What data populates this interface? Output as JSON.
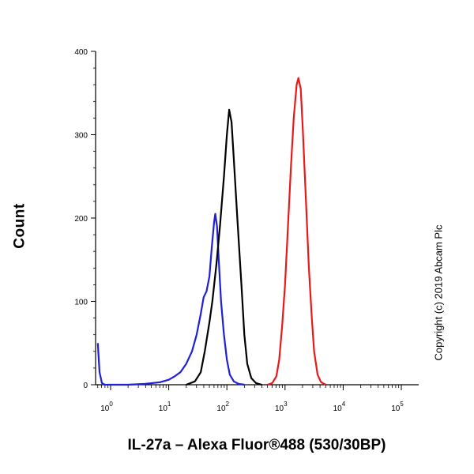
{
  "chart_data": {
    "type": "line",
    "xlabel": "IL-27a – Alexa Fluor®488 (530/30BP)",
    "ylabel": "Count",
    "xscale": "log",
    "xlim": [
      0,
      5
    ],
    "ylim": [
      0,
      400
    ],
    "yticks": [
      0,
      100,
      200,
      300,
      400
    ],
    "xticks": [
      {
        "pos": 0,
        "base": "10",
        "exp": "0"
      },
      {
        "pos": 1,
        "base": "10",
        "exp": "1"
      },
      {
        "pos": 2,
        "base": "10",
        "exp": "2"
      },
      {
        "pos": 3,
        "base": "10",
        "exp": "3"
      },
      {
        "pos": 4,
        "base": "10",
        "exp": "4"
      },
      {
        "pos": 5,
        "base": "10",
        "exp": "5"
      }
    ],
    "grid": false,
    "legend": "none",
    "series": [
      {
        "color": "#1f1fd6",
        "points": [
          [
            -0.22,
            50
          ],
          [
            -0.19,
            15
          ],
          [
            -0.15,
            2
          ],
          [
            -0.1,
            0
          ],
          [
            0.3,
            0
          ],
          [
            0.6,
            1
          ],
          [
            0.85,
            3
          ],
          [
            1.0,
            6
          ],
          [
            1.1,
            10
          ],
          [
            1.2,
            15
          ],
          [
            1.3,
            25
          ],
          [
            1.4,
            40
          ],
          [
            1.48,
            60
          ],
          [
            1.55,
            85
          ],
          [
            1.6,
            105
          ],
          [
            1.65,
            112
          ],
          [
            1.7,
            130
          ],
          [
            1.74,
            165
          ],
          [
            1.78,
            195
          ],
          [
            1.8,
            205
          ],
          [
            1.83,
            190
          ],
          [
            1.86,
            150
          ],
          [
            1.9,
            100
          ],
          [
            1.95,
            60
          ],
          [
            2.0,
            30
          ],
          [
            2.05,
            12
          ],
          [
            2.12,
            4
          ],
          [
            2.2,
            1
          ],
          [
            2.3,
            0
          ]
        ]
      },
      {
        "color": "#000000",
        "points": [
          [
            1.3,
            0
          ],
          [
            1.45,
            4
          ],
          [
            1.55,
            15
          ],
          [
            1.62,
            40
          ],
          [
            1.7,
            75
          ],
          [
            1.75,
            100
          ],
          [
            1.82,
            145
          ],
          [
            1.88,
            190
          ],
          [
            1.95,
            250
          ],
          [
            2.0,
            300
          ],
          [
            2.04,
            330
          ],
          [
            2.08,
            315
          ],
          [
            2.12,
            270
          ],
          [
            2.18,
            200
          ],
          [
            2.25,
            120
          ],
          [
            2.3,
            60
          ],
          [
            2.35,
            25
          ],
          [
            2.42,
            8
          ],
          [
            2.5,
            2
          ],
          [
            2.6,
            0
          ]
        ]
      },
      {
        "color": "#e8191b",
        "points": [
          [
            2.7,
            0
          ],
          [
            2.78,
            2
          ],
          [
            2.85,
            10
          ],
          [
            2.9,
            30
          ],
          [
            2.95,
            70
          ],
          [
            3.0,
            120
          ],
          [
            3.05,
            190
          ],
          [
            3.1,
            260
          ],
          [
            3.15,
            320
          ],
          [
            3.2,
            360
          ],
          [
            3.23,
            368
          ],
          [
            3.27,
            355
          ],
          [
            3.31,
            300
          ],
          [
            3.36,
            220
          ],
          [
            3.41,
            140
          ],
          [
            3.46,
            80
          ],
          [
            3.5,
            40
          ],
          [
            3.56,
            12
          ],
          [
            3.62,
            3
          ],
          [
            3.7,
            0
          ]
        ]
      }
    ]
  },
  "copyright": "Copyright (c) 2019 Abcam Plc"
}
